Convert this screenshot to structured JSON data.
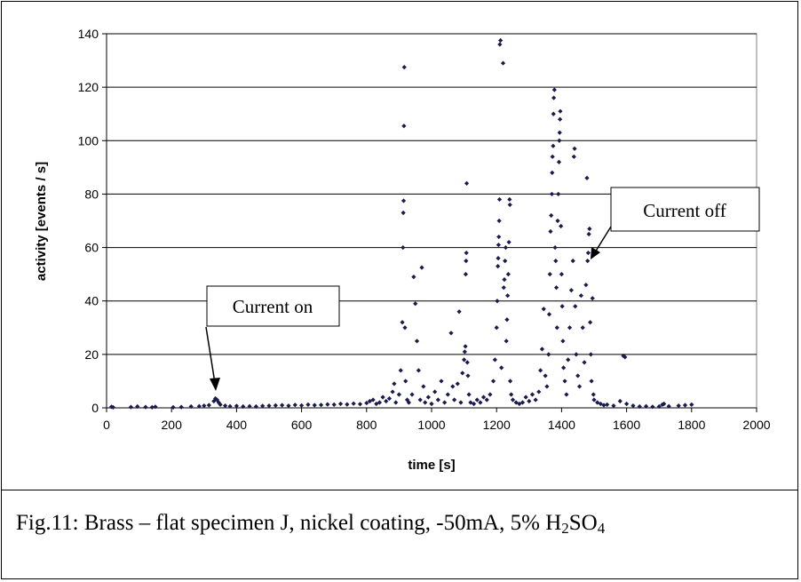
{
  "chart_data": {
    "type": "scatter",
    "title": "",
    "xlabel": "time [s]",
    "ylabel": "activity [events / s]",
    "xlim": [
      0,
      2000
    ],
    "ylim": [
      0,
      140
    ],
    "xticks": [
      0,
      200,
      400,
      600,
      800,
      1000,
      1200,
      1400,
      1600,
      1800,
      2000
    ],
    "yticks": [
      0,
      20,
      40,
      60,
      80,
      100,
      120,
      140
    ],
    "grid": "horizontal",
    "marker_color": "#1a1a4d",
    "annotations": [
      {
        "text": "Current on",
        "x": 340,
        "y": 3
      },
      {
        "text": "Current off",
        "x": 1470,
        "y": 57
      }
    ],
    "series": [
      {
        "points": [
          [
            15,
            0.4
          ],
          [
            20,
            0.2
          ],
          [
            75,
            0.3
          ],
          [
            95,
            0.5
          ],
          [
            120,
            0.3
          ],
          [
            140,
            0.2
          ],
          [
            150,
            0.4
          ],
          [
            205,
            0.2
          ],
          [
            230,
            0.3
          ],
          [
            260,
            0.5
          ],
          [
            285,
            0.6
          ],
          [
            300,
            0.8
          ],
          [
            315,
            1.0
          ],
          [
            330,
            2.5
          ],
          [
            335,
            3.5
          ],
          [
            340,
            3.0
          ],
          [
            345,
            2.0
          ],
          [
            350,
            1.2
          ],
          [
            365,
            0.8
          ],
          [
            380,
            0.6
          ],
          [
            400,
            0.7
          ],
          [
            420,
            0.5
          ],
          [
            440,
            0.6
          ],
          [
            460,
            0.5
          ],
          [
            480,
            0.7
          ],
          [
            500,
            0.8
          ],
          [
            520,
            0.9
          ],
          [
            540,
            1.0
          ],
          [
            560,
            0.8
          ],
          [
            580,
            1.1
          ],
          [
            600,
            0.9
          ],
          [
            620,
            1.2
          ],
          [
            640,
            1.0
          ],
          [
            660,
            1.1
          ],
          [
            680,
            1.3
          ],
          [
            700,
            1.2
          ],
          [
            720,
            1.5
          ],
          [
            740,
            1.3
          ],
          [
            760,
            1.6
          ],
          [
            780,
            1.4
          ],
          [
            800,
            1.8
          ],
          [
            810,
            2.5
          ],
          [
            820,
            3.0
          ],
          [
            830,
            1.5
          ],
          [
            840,
            2.0
          ],
          [
            850,
            4.0
          ],
          [
            860,
            2.5
          ],
          [
            870,
            3.5
          ],
          [
            880,
            6.0
          ],
          [
            885,
            9.0
          ],
          [
            890,
            2.0
          ],
          [
            900,
            5.0
          ],
          [
            905,
            14.0
          ],
          [
            910,
            32.0
          ],
          [
            912,
            60.0
          ],
          [
            913,
            73.0
          ],
          [
            914,
            77.5
          ],
          [
            915,
            105.5
          ],
          [
            916,
            127.5
          ],
          [
            918,
            30.0
          ],
          [
            920,
            10.0
          ],
          [
            925,
            3.0
          ],
          [
            930,
            2.0
          ],
          [
            940,
            5.0
          ],
          [
            945,
            49.0
          ],
          [
            950,
            39.0
          ],
          [
            955,
            25.0
          ],
          [
            960,
            14.0
          ],
          [
            965,
            3.0
          ],
          [
            970,
            52.5
          ],
          [
            975,
            8.0
          ],
          [
            980,
            2.0
          ],
          [
            990,
            4.0
          ],
          [
            1000,
            1.5
          ],
          [
            1010,
            6.0
          ],
          [
            1020,
            3.0
          ],
          [
            1030,
            10.0
          ],
          [
            1040,
            2.0
          ],
          [
            1050,
            5.0
          ],
          [
            1060,
            28.0
          ],
          [
            1065,
            8.0
          ],
          [
            1070,
            3.0
          ],
          [
            1080,
            9.0
          ],
          [
            1085,
            36.0
          ],
          [
            1090,
            2.0
          ],
          [
            1095,
            13.0
          ],
          [
            1100,
            18.0
          ],
          [
            1102,
            21.0
          ],
          [
            1104,
            23.0
          ],
          [
            1105,
            50.0
          ],
          [
            1106,
            55.0
          ],
          [
            1107,
            58.0
          ],
          [
            1108,
            84.0
          ],
          [
            1110,
            17.0
          ],
          [
            1112,
            12.0
          ],
          [
            1115,
            5.0
          ],
          [
            1120,
            2.0
          ],
          [
            1130,
            1.5
          ],
          [
            1140,
            3.0
          ],
          [
            1150,
            2.0
          ],
          [
            1160,
            4.0
          ],
          [
            1170,
            3.0
          ],
          [
            1180,
            5.0
          ],
          [
            1190,
            10.0
          ],
          [
            1195,
            18.0
          ],
          [
            1200,
            30.0
          ],
          [
            1202,
            40.0
          ],
          [
            1204,
            53.0
          ],
          [
            1205,
            56.0
          ],
          [
            1206,
            61.0
          ],
          [
            1207,
            64.0
          ],
          [
            1208,
            70.0
          ],
          [
            1209,
            78.0
          ],
          [
            1210,
            136.0
          ],
          [
            1212,
            137.5
          ],
          [
            1215,
            15.0
          ],
          [
            1220,
            129.0
          ],
          [
            1222,
            45.0
          ],
          [
            1224,
            48.0
          ],
          [
            1226,
            55.0
          ],
          [
            1228,
            60.0
          ],
          [
            1230,
            25.0
          ],
          [
            1232,
            33.0
          ],
          [
            1234,
            42.0
          ],
          [
            1236,
            50.0
          ],
          [
            1238,
            62.0
          ],
          [
            1240,
            78.0
          ],
          [
            1241,
            76.0
          ],
          [
            1242,
            10.0
          ],
          [
            1245,
            5.0
          ],
          [
            1250,
            3.0
          ],
          [
            1260,
            2.0
          ],
          [
            1270,
            1.5
          ],
          [
            1280,
            2.0
          ],
          [
            1290,
            4.0
          ],
          [
            1300,
            2.5
          ],
          [
            1310,
            5.0
          ],
          [
            1320,
            3.0
          ],
          [
            1330,
            6.0
          ],
          [
            1335,
            14.0
          ],
          [
            1340,
            22.0
          ],
          [
            1345,
            37.0
          ],
          [
            1350,
            12.0
          ],
          [
            1355,
            8.0
          ],
          [
            1360,
            20.0
          ],
          [
            1362,
            35.0
          ],
          [
            1364,
            50.0
          ],
          [
            1366,
            66.0
          ],
          [
            1368,
            72.0
          ],
          [
            1370,
            80.0
          ],
          [
            1371,
            88.0
          ],
          [
            1372,
            94.0
          ],
          [
            1374,
            98.0
          ],
          [
            1375,
            110.0
          ],
          [
            1376,
            116.0
          ],
          [
            1378,
            119.0
          ],
          [
            1380,
            60.0
          ],
          [
            1382,
            55.0
          ],
          [
            1384,
            45.0
          ],
          [
            1386,
            30.0
          ],
          [
            1388,
            70.0
          ],
          [
            1390,
            80.0
          ],
          [
            1392,
            92.0
          ],
          [
            1393,
            100.0
          ],
          [
            1394,
            103.0
          ],
          [
            1395,
            108.0
          ],
          [
            1396,
            111.0
          ],
          [
            1398,
            68.0
          ],
          [
            1400,
            50.0
          ],
          [
            1402,
            38.0
          ],
          [
            1404,
            25.0
          ],
          [
            1406,
            15.0
          ],
          [
            1410,
            10.0
          ],
          [
            1415,
            5.0
          ],
          [
            1420,
            18.0
          ],
          [
            1425,
            30.0
          ],
          [
            1430,
            44.0
          ],
          [
            1435,
            55.0
          ],
          [
            1438,
            94.0
          ],
          [
            1440,
            97.0
          ],
          [
            1442,
            38.0
          ],
          [
            1445,
            20.0
          ],
          [
            1450,
            12.0
          ],
          [
            1455,
            8.0
          ],
          [
            1460,
            42.0
          ],
          [
            1465,
            30.0
          ],
          [
            1470,
            17.0
          ],
          [
            1475,
            46.0
          ],
          [
            1478,
            86.0
          ],
          [
            1480,
            55.0
          ],
          [
            1482,
            58.0
          ],
          [
            1484,
            65.0
          ],
          [
            1486,
            67.0
          ],
          [
            1488,
            32.0
          ],
          [
            1490,
            20.0
          ],
          [
            1492,
            10.0
          ],
          [
            1495,
            41.0
          ],
          [
            1498,
            5.0
          ],
          [
            1500,
            3.0
          ],
          [
            1510,
            2.0
          ],
          [
            1520,
            1.5
          ],
          [
            1530,
            1.0
          ],
          [
            1540,
            1.2
          ],
          [
            1560,
            0.8
          ],
          [
            1580,
            2.5
          ],
          [
            1590,
            19.5
          ],
          [
            1595,
            19.0
          ],
          [
            1600,
            1.5
          ],
          [
            1620,
            0.8
          ],
          [
            1640,
            0.5
          ],
          [
            1660,
            0.6
          ],
          [
            1680,
            0.4
          ],
          [
            1700,
            0.5
          ],
          [
            1710,
            1.2
          ],
          [
            1715,
            1.5
          ],
          [
            1730,
            0.6
          ],
          [
            1760,
            0.8
          ],
          [
            1780,
            1.0
          ],
          [
            1800,
            1.2
          ]
        ]
      }
    ]
  },
  "caption": {
    "prefix": "Fig.11: Brass – flat specimen J, nickel coating, -50mA, 5% H",
    "sub1": "2",
    "mid": "SO",
    "sub2": "4"
  }
}
